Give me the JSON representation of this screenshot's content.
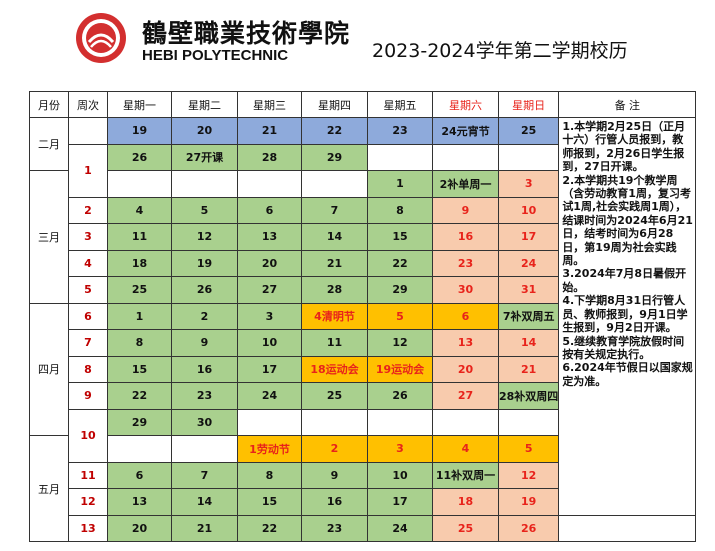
{
  "header": {
    "school_cn": "鶴壁職業技術學院",
    "school_en": "HEBI POLYTECHNIC",
    "title": "2023-2024学年第二学期校历"
  },
  "columns": [
    "月份",
    "周次",
    "星期一",
    "星期二",
    "星期三",
    "星期四",
    "星期五",
    "星期六",
    "星期日",
    "备 注"
  ],
  "months": [
    "二月",
    "三月",
    "四月",
    "五月"
  ],
  "weeks": [
    "1",
    "2",
    "3",
    "4",
    "5",
    "6",
    "7",
    "8",
    "9",
    "10",
    "11",
    "12",
    "13"
  ],
  "cells": {
    "r1": [
      "19",
      "20",
      "21",
      "22",
      "23",
      "24元宵节",
      "25"
    ],
    "r2": [
      "26",
      "27开课",
      "28",
      "29"
    ],
    "r3": [
      "1",
      "2补单周一",
      "3"
    ],
    "r4": [
      "4",
      "5",
      "6",
      "7",
      "8",
      "9",
      "10"
    ],
    "r5": [
      "11",
      "12",
      "13",
      "14",
      "15",
      "16",
      "17"
    ],
    "r6": [
      "18",
      "19",
      "20",
      "21",
      "22",
      "23",
      "24"
    ],
    "r7": [
      "25",
      "26",
      "27",
      "28",
      "29",
      "30",
      "31"
    ],
    "r8": [
      "1",
      "2",
      "3",
      "4清明节",
      "5",
      "6",
      "7补双周五"
    ],
    "r9": [
      "8",
      "9",
      "10",
      "11",
      "12",
      "13",
      "14"
    ],
    "r10": [
      "15",
      "16",
      "17",
      "18运动会",
      "19运动会",
      "20",
      "21"
    ],
    "r11": [
      "22",
      "23",
      "24",
      "25",
      "26",
      "27",
      "28补双周四"
    ],
    "r12": [
      "29",
      "30"
    ],
    "r13": [
      "1劳动节",
      "2",
      "3",
      "4",
      "5"
    ],
    "r14": [
      "6",
      "7",
      "8",
      "9",
      "10",
      "11补双周一",
      "12"
    ],
    "r15": [
      "13",
      "14",
      "15",
      "16",
      "17",
      "18",
      "19"
    ],
    "r16": [
      "20",
      "21",
      "22",
      "23",
      "24",
      "25",
      "26"
    ]
  },
  "notes": [
    "1.本学期2月25日（正月十六）行管人员报到，教师报到，2月26日学生报到，27日开课。",
    "2.本学期共19个教学周（含劳动教育1周，复习考试1周,社会实践周1周），结课时间为2024年6月21日，结考时间为6月28日，第19周为社会实践周。",
    "3.2024年7月8日暑假开始。",
    "4.下学期8月31日行管人员、教师报到，9月1日学生报到，9月2日开课。",
    "5.继续教育学院放假时间按有关规定执行。",
    "6.2024年节假日以国家规定为准。"
  ],
  "colors": {
    "blue": "#8eaadb",
    "green": "#a9d08e",
    "orange": "#ffc000",
    "peach": "#f8cbad",
    "red": "#e8231b"
  },
  "icons": {
    "logo": "school-emblem-icon"
  }
}
